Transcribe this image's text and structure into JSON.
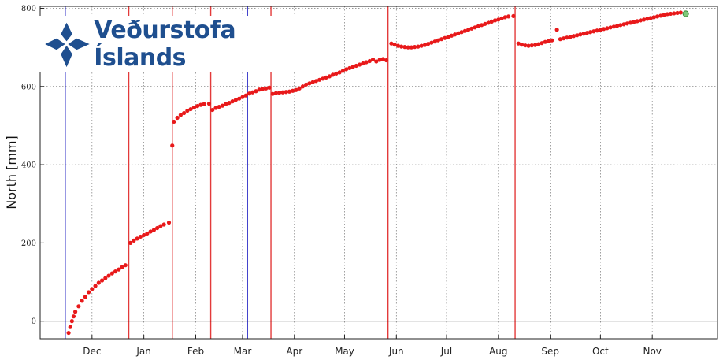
{
  "chart_data": {
    "type": "scatter",
    "title": "",
    "ylabel": "North [mm]",
    "xlabel": "",
    "xlim": [
      -15,
      390
    ],
    "ylim": [
      -45,
      805
    ],
    "y_ticks": [
      0,
      200,
      400,
      600,
      800
    ],
    "x_ticks": [
      {
        "label": "Dec",
        "day": 16
      },
      {
        "label": "Jan",
        "day": 47
      },
      {
        "label": "Feb",
        "day": 78
      },
      {
        "label": "Mar",
        "day": 106
      },
      {
        "label": "Apr",
        "day": 137
      },
      {
        "label": "May",
        "day": 167
      },
      {
        "label": "Jun",
        "day": 198
      },
      {
        "label": "Jul",
        "day": 228
      },
      {
        "label": "Aug",
        "day": 259
      },
      {
        "label": "Sep",
        "day": 290
      },
      {
        "label": "Oct",
        "day": 320
      },
      {
        "label": "Nov",
        "day": 351
      }
    ],
    "grid": true,
    "series": [
      {
        "color": "#e8191a",
        "points": [
          [
            2,
            -30
          ],
          [
            3,
            -15
          ],
          [
            4,
            0
          ],
          [
            5,
            12
          ],
          [
            6,
            24
          ],
          [
            8,
            38
          ],
          [
            10,
            52
          ],
          [
            12,
            62
          ],
          [
            14,
            74
          ],
          [
            16,
            82
          ],
          [
            18,
            90
          ],
          [
            20,
            98
          ],
          [
            22,
            104
          ],
          [
            24,
            110
          ],
          [
            26,
            116
          ],
          [
            28,
            122
          ],
          [
            30,
            127
          ],
          [
            32,
            132
          ],
          [
            34,
            138
          ],
          [
            36,
            143
          ],
          [
            39,
            200
          ],
          [
            41,
            206
          ],
          [
            43,
            211
          ],
          [
            45,
            216
          ],
          [
            47,
            220
          ],
          [
            49,
            224
          ],
          [
            51,
            229
          ],
          [
            53,
            233
          ],
          [
            55,
            238
          ],
          [
            57,
            243
          ],
          [
            59,
            247
          ],
          [
            62,
            252
          ],
          [
            64,
            449
          ],
          [
            65,
            510
          ],
          [
            67,
            520
          ],
          [
            69,
            527
          ],
          [
            71,
            532
          ],
          [
            73,
            538
          ],
          [
            75,
            542
          ],
          [
            77,
            546
          ],
          [
            79,
            550
          ],
          [
            81,
            553
          ],
          [
            83,
            555
          ],
          [
            86,
            556
          ],
          [
            88,
            540
          ],
          [
            90,
            545
          ],
          [
            92,
            548
          ],
          [
            94,
            551
          ],
          [
            96,
            555
          ],
          [
            98,
            558
          ],
          [
            100,
            562
          ],
          [
            102,
            566
          ],
          [
            104,
            569
          ],
          [
            106,
            573
          ],
          [
            108,
            577
          ],
          [
            110,
            582
          ],
          [
            112,
            585
          ],
          [
            114,
            588
          ],
          [
            116,
            592
          ],
          [
            118,
            593
          ],
          [
            120,
            595
          ],
          [
            122,
            597
          ],
          [
            124,
            581
          ],
          [
            126,
            583
          ],
          [
            128,
            584
          ],
          [
            130,
            585
          ],
          [
            132,
            586
          ],
          [
            134,
            587
          ],
          [
            136,
            589
          ],
          [
            138,
            591
          ],
          [
            140,
            595
          ],
          [
            142,
            600
          ],
          [
            144,
            605
          ],
          [
            146,
            608
          ],
          [
            148,
            611
          ],
          [
            150,
            614
          ],
          [
            152,
            617
          ],
          [
            154,
            620
          ],
          [
            156,
            623
          ],
          [
            158,
            626
          ],
          [
            160,
            630
          ],
          [
            162,
            633
          ],
          [
            164,
            636
          ],
          [
            166,
            640
          ],
          [
            168,
            644
          ],
          [
            170,
            647
          ],
          [
            172,
            650
          ],
          [
            174,
            653
          ],
          [
            176,
            656
          ],
          [
            178,
            659
          ],
          [
            180,
            662
          ],
          [
            182,
            665
          ],
          [
            184,
            669
          ],
          [
            186,
            664
          ],
          [
            188,
            668
          ],
          [
            190,
            670
          ],
          [
            192,
            667
          ],
          [
            195,
            710
          ],
          [
            197,
            707
          ],
          [
            199,
            704
          ],
          [
            201,
            702
          ],
          [
            203,
            701
          ],
          [
            205,
            700
          ],
          [
            207,
            700
          ],
          [
            209,
            701
          ],
          [
            211,
            702
          ],
          [
            213,
            704
          ],
          [
            215,
            706
          ],
          [
            217,
            709
          ],
          [
            219,
            712
          ],
          [
            221,
            715
          ],
          [
            223,
            718
          ],
          [
            225,
            721
          ],
          [
            227,
            724
          ],
          [
            229,
            727
          ],
          [
            231,
            730
          ],
          [
            233,
            733
          ],
          [
            235,
            736
          ],
          [
            237,
            739
          ],
          [
            239,
            742
          ],
          [
            241,
            745
          ],
          [
            243,
            748
          ],
          [
            245,
            751
          ],
          [
            247,
            754
          ],
          [
            249,
            757
          ],
          [
            251,
            760
          ],
          [
            253,
            763
          ],
          [
            255,
            766
          ],
          [
            257,
            769
          ],
          [
            259,
            771
          ],
          [
            261,
            774
          ],
          [
            263,
            777
          ],
          [
            265,
            779
          ],
          [
            268,
            780
          ],
          [
            271,
            710
          ],
          [
            273,
            707
          ],
          [
            275,
            705
          ],
          [
            277,
            704
          ],
          [
            279,
            705
          ],
          [
            281,
            706
          ],
          [
            283,
            708
          ],
          [
            285,
            711
          ],
          [
            287,
            714
          ],
          [
            289,
            716
          ],
          [
            291,
            718
          ],
          [
            294,
            745
          ],
          [
            296,
            721
          ],
          [
            298,
            723
          ],
          [
            300,
            725
          ],
          [
            302,
            727
          ],
          [
            304,
            729
          ],
          [
            306,
            731
          ],
          [
            308,
            733
          ],
          [
            310,
            735
          ],
          [
            312,
            737
          ],
          [
            314,
            739
          ],
          [
            316,
            741
          ],
          [
            318,
            743
          ],
          [
            320,
            745
          ],
          [
            322,
            747
          ],
          [
            324,
            749
          ],
          [
            326,
            751
          ],
          [
            328,
            753
          ],
          [
            330,
            755
          ],
          [
            332,
            757
          ],
          [
            334,
            759
          ],
          [
            336,
            761
          ],
          [
            338,
            763
          ],
          [
            340,
            765
          ],
          [
            342,
            767
          ],
          [
            344,
            769
          ],
          [
            346,
            771
          ],
          [
            348,
            773
          ],
          [
            350,
            775
          ],
          [
            352,
            777
          ],
          [
            354,
            779
          ],
          [
            356,
            781
          ],
          [
            358,
            783
          ],
          [
            360,
            785
          ],
          [
            362,
            786
          ],
          [
            364,
            787
          ],
          [
            366,
            788
          ],
          [
            368,
            789
          ]
        ]
      }
    ],
    "last_point": {
      "x": 371,
      "y": 786,
      "color": "#7ec87a"
    },
    "zero_line": 0,
    "vertical_lines": [
      {
        "day": 0,
        "color": "#4444cc"
      },
      {
        "day": 38,
        "color": "#e33a3a"
      },
      {
        "day": 64,
        "color": "#e33a3a"
      },
      {
        "day": 87,
        "color": "#e33a3a"
      },
      {
        "day": 109,
        "color": "#4444cc"
      },
      {
        "day": 123,
        "color": "#e33a3a"
      },
      {
        "day": 193,
        "color": "#e33a3a"
      },
      {
        "day": 269,
        "color": "#e33a3a"
      }
    ]
  },
  "logo": {
    "text": "Veðurstofa Íslands",
    "color": "#1f4f8f"
  }
}
